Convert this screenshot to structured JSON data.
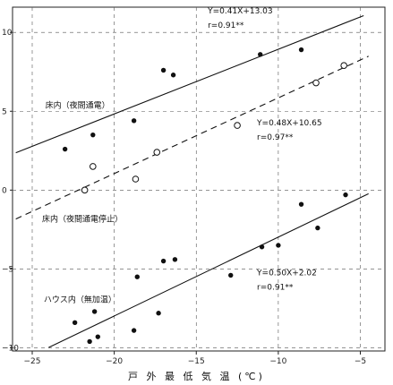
{
  "chart_data": {
    "type": "scatter",
    "xlabel": "戸 外 最 低 気 温 (℃)",
    "ylabel": "",
    "xlim": [
      -26.2,
      -3.5
    ],
    "ylim": [
      -10.2,
      11.6
    ],
    "xticks": [
      -25,
      -20,
      -15,
      -10,
      -5
    ],
    "yticks": [
      10,
      5,
      0,
      -5,
      -10
    ],
    "grid": "dashed",
    "series": [
      {
        "marker": "filled",
        "points": [
          [
            -23,
            2.6
          ],
          [
            -21.3,
            3.5
          ],
          [
            -18.8,
            4.4
          ],
          [
            -17,
            7.6
          ],
          [
            -16.4,
            7.3
          ],
          [
            -11.1,
            8.6
          ],
          [
            -8.6,
            8.9
          ],
          [
            -22.4,
            -8.4
          ],
          [
            -21.5,
            -9.6
          ],
          [
            -21.2,
            -7.7
          ],
          [
            -21,
            -9.3
          ],
          [
            -18.8,
            -8.9
          ],
          [
            -18.6,
            -5.5
          ],
          [
            -17.3,
            -7.8
          ],
          [
            -17,
            -4.5
          ],
          [
            -16.3,
            -4.4
          ],
          [
            -12.9,
            -5.4
          ],
          [
            -11,
            -3.6
          ],
          [
            -10,
            -3.5
          ],
          [
            -8.6,
            -0.9
          ],
          [
            -7.6,
            -2.4
          ],
          [
            -5.9,
            -0.3
          ]
        ]
      },
      {
        "marker": "open",
        "points": [
          [
            -21.8,
            0
          ],
          [
            -21.3,
            1.5
          ],
          [
            -18.7,
            0.7
          ],
          [
            -17.4,
            2.4
          ],
          [
            -12.5,
            4.1
          ],
          [
            -7.7,
            6.8
          ],
          [
            -6,
            7.9
          ]
        ]
      }
    ],
    "lines": [
      {
        "label": "床内（夜間通電）",
        "slope": 0.41,
        "intercept": 13.03,
        "style": "solid",
        "x_range": [
          -26,
          -4.8
        ]
      },
      {
        "label": "床内（夜間通電停止）",
        "slope": 0.48,
        "intercept": 10.65,
        "style": "dashed",
        "x_range": [
          -26,
          -4.5
        ]
      },
      {
        "label": "ハウス内（無加温）",
        "slope": 0.5,
        "intercept": 2.02,
        "style": "solid",
        "x_range": [
          -24,
          -4.5
        ]
      }
    ],
    "annotations": {
      "line1_eq": "Y=0.41X+13.03",
      "line1_r": "r=0.91**",
      "line1_label": "床内（夜間通電）",
      "line2_eq": "Y=0.48X+10.65",
      "line2_r": "r=0.97**",
      "line2_label": "床内（夜間通電停止）",
      "line3_eq": "Y=0.50X+2.02",
      "line3_r": "r=0.91**",
      "line3_label": "ハウス内（無加温）"
    }
  }
}
